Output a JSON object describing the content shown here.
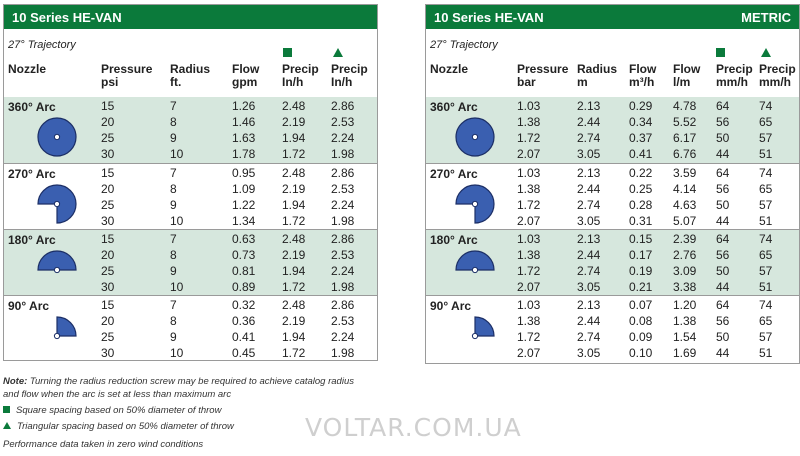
{
  "left": {
    "title": "10 Series HE-VAN",
    "badge": "",
    "trajectory": "27° Trajectory",
    "columns": {
      "nozzle": "Nozzle",
      "pressure": [
        "Pressure",
        "psi"
      ],
      "radius": [
        "Radius",
        "ft."
      ],
      "flow": [
        "Flow",
        "gpm"
      ],
      "precip_sq": [
        "Precip",
        "In/h"
      ],
      "precip_tri": [
        "Precip",
        "In/h"
      ]
    },
    "groups": [
      {
        "name": "360° Arc",
        "shape": "circle",
        "rows": [
          [
            "15",
            "7",
            "1.26",
            "2.48",
            "2.86"
          ],
          [
            "20",
            "8",
            "1.46",
            "2.19",
            "2.53"
          ],
          [
            "25",
            "9",
            "1.63",
            "1.94",
            "2.24"
          ],
          [
            "30",
            "10",
            "1.78",
            "1.72",
            "1.98"
          ]
        ]
      },
      {
        "name": "270° Arc",
        "shape": "three-quarter",
        "rows": [
          [
            "15",
            "7",
            "0.95",
            "2.48",
            "2.86"
          ],
          [
            "20",
            "8",
            "1.09",
            "2.19",
            "2.53"
          ],
          [
            "25",
            "9",
            "1.22",
            "1.94",
            "2.24"
          ],
          [
            "30",
            "10",
            "1.34",
            "1.72",
            "1.98"
          ]
        ]
      },
      {
        "name": "180° Arc",
        "shape": "half",
        "rows": [
          [
            "15",
            "7",
            "0.63",
            "2.48",
            "2.86"
          ],
          [
            "20",
            "8",
            "0.73",
            "2.19",
            "2.53"
          ],
          [
            "25",
            "9",
            "0.81",
            "1.94",
            "2.24"
          ],
          [
            "30",
            "10",
            "0.89",
            "1.72",
            "1.98"
          ]
        ]
      },
      {
        "name": "90° Arc",
        "shape": "quarter",
        "rows": [
          [
            "15",
            "7",
            "0.32",
            "2.48",
            "2.86"
          ],
          [
            "20",
            "8",
            "0.36",
            "2.19",
            "2.53"
          ],
          [
            "25",
            "9",
            "0.41",
            "1.94",
            "2.24"
          ],
          [
            "30",
            "10",
            "0.45",
            "1.72",
            "1.98"
          ]
        ]
      }
    ]
  },
  "right": {
    "title": "10 Series HE-VAN",
    "badge": "METRIC",
    "trajectory": "27° Trajectory",
    "columns": {
      "nozzle": "Nozzle",
      "pressure": [
        "Pressure",
        "bar"
      ],
      "radius": [
        "Radius",
        "m"
      ],
      "flow": [
        "Flow",
        "m³/h"
      ],
      "flow2": [
        "Flow",
        "l/m"
      ],
      "precip_sq": [
        "Precip",
        "mm/h"
      ],
      "precip_tri": [
        "Precip",
        "mm/h"
      ]
    },
    "groups": [
      {
        "name": "360° Arc",
        "shape": "circle",
        "rows": [
          [
            "1.03",
            "2.13",
            "0.29",
            "4.78",
            "64",
            "74"
          ],
          [
            "1.38",
            "2.44",
            "0.34",
            "5.52",
            "56",
            "65"
          ],
          [
            "1.72",
            "2.74",
            "0.37",
            "6.17",
            "50",
            "57"
          ],
          [
            "2.07",
            "3.05",
            "0.41",
            "6.76",
            "44",
            "51"
          ]
        ]
      },
      {
        "name": "270° Arc",
        "shape": "three-quarter",
        "rows": [
          [
            "1.03",
            "2.13",
            "0.22",
            "3.59",
            "64",
            "74"
          ],
          [
            "1.38",
            "2.44",
            "0.25",
            "4.14",
            "56",
            "65"
          ],
          [
            "1.72",
            "2.74",
            "0.28",
            "4.63",
            "50",
            "57"
          ],
          [
            "2.07",
            "3.05",
            "0.31",
            "5.07",
            "44",
            "51"
          ]
        ]
      },
      {
        "name": "180° Arc",
        "shape": "half",
        "rows": [
          [
            "1.03",
            "2.13",
            "0.15",
            "2.39",
            "64",
            "74"
          ],
          [
            "1.38",
            "2.44",
            "0.17",
            "2.76",
            "56",
            "65"
          ],
          [
            "1.72",
            "2.74",
            "0.19",
            "3.09",
            "50",
            "57"
          ],
          [
            "2.07",
            "3.05",
            "0.21",
            "3.38",
            "44",
            "51"
          ]
        ]
      },
      {
        "name": "90° Arc",
        "shape": "quarter",
        "rows": [
          [
            "1.03",
            "2.13",
            "0.07",
            "1.20",
            "64",
            "74"
          ],
          [
            "1.38",
            "2.44",
            "0.08",
            "1.38",
            "56",
            "65"
          ],
          [
            "1.72",
            "2.74",
            "0.09",
            "1.54",
            "50",
            "57"
          ],
          [
            "2.07",
            "3.05",
            "0.10",
            "1.69",
            "44",
            "51"
          ]
        ]
      }
    ]
  },
  "notes": {
    "note_label": "Note:",
    "note_line1": " Turning the radius reduction screw may be required to achieve catalog radius",
    "note_line2": "and flow when the arc is set at less than maximum arc",
    "square": "Square spacing based on 50% diameter of throw",
    "triangle": "Triangular spacing based on 50% diameter of throw",
    "wind": "Performance data taken in zero wind conditions"
  },
  "watermark": "VOLTAR.COM.UA",
  "colors": {
    "header_green": "#0b7a3b",
    "shade": "#d6e7dd",
    "arc_blue": "#3a5fb0"
  }
}
